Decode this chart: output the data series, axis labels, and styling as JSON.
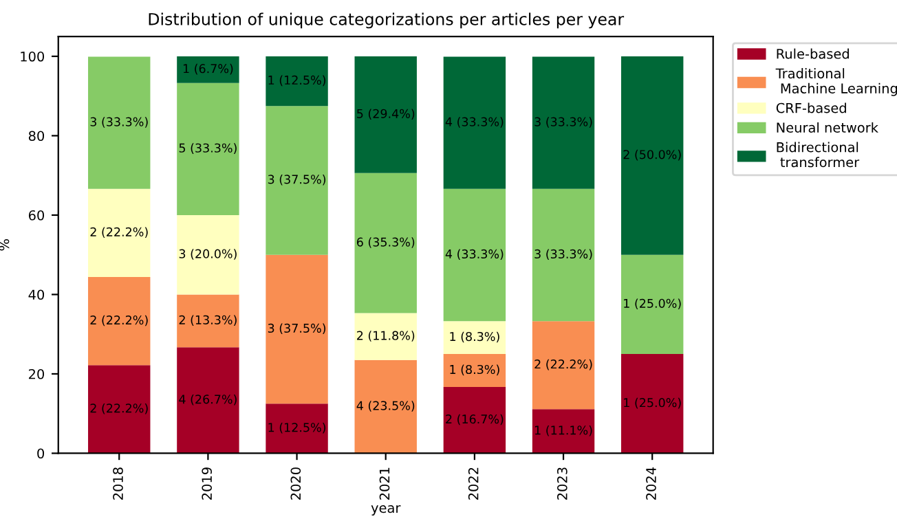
{
  "chart_data": {
    "type": "bar",
    "stacked": true,
    "title": "Distribution of unique categorizations per articles per year",
    "xlabel": "year",
    "ylabel": "%",
    "categories": [
      "2018",
      "2019",
      "2020",
      "2021",
      "2022",
      "2023",
      "2024"
    ],
    "series": [
      {
        "name": "Rule-based",
        "color": "#a50026",
        "values": [
          22.2,
          26.7,
          12.5,
          0,
          16.7,
          11.1,
          25.0
        ],
        "value_labels": [
          "2 (22.2%)",
          "4 (26.7%)",
          "1 (12.5%)",
          null,
          "2 (16.7%)",
          "1 (11.1%)",
          "1 (25.0%)"
        ]
      },
      {
        "name": "Traditional\n Machine Learning",
        "color": "#f98e52",
        "values": [
          22.2,
          13.3,
          37.5,
          23.5,
          8.3,
          22.2,
          0
        ],
        "value_labels": [
          "2 (22.2%)",
          "2 (13.3%)",
          "3 (37.5%)",
          "4 (23.5%)",
          "1 (8.3%)",
          "2 (22.2%)",
          null
        ]
      },
      {
        "name": "CRF-based",
        "color": "#ffffbf",
        "values": [
          22.2,
          20.0,
          0,
          11.8,
          8.3,
          0,
          0
        ],
        "value_labels": [
          "2 (22.2%)",
          "3 (20.0%)",
          null,
          "2 (11.8%)",
          "1 (8.3%)",
          null,
          null
        ]
      },
      {
        "name": "Neural network",
        "color": "#86cb66",
        "values": [
          33.3,
          33.3,
          37.5,
          35.3,
          33.3,
          33.3,
          25.0
        ],
        "value_labels": [
          "3 (33.3%)",
          "5 (33.3%)",
          "3 (37.5%)",
          "6 (35.3%)",
          "4 (33.3%)",
          "3 (33.3%)",
          "1 (25.0%)"
        ]
      },
      {
        "name": "Bidirectional\n transformer",
        "color": "#006837",
        "values": [
          0,
          6.7,
          12.5,
          29.4,
          33.3,
          33.3,
          50.0
        ],
        "value_labels": [
          null,
          "1 (6.7%)",
          "1 (12.5%)",
          "5 (29.4%)",
          "4 (33.3%)",
          "3 (33.3%)",
          "2 (50.0%)"
        ]
      }
    ],
    "ylim": [
      0,
      105
    ],
    "yticks": [
      0,
      20,
      40,
      60,
      80,
      100
    ],
    "grid": false,
    "legend": "top right"
  }
}
